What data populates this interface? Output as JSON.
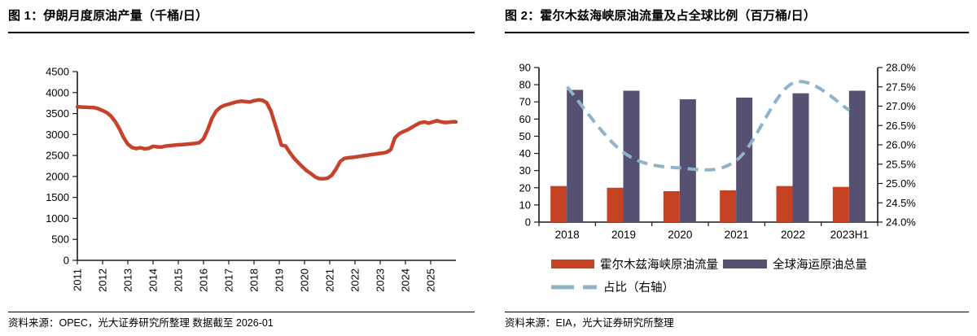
{
  "page": {
    "background": "#FFFFFF"
  },
  "figure1": {
    "title": "图 1：伊朗月度原油产量（千桶/日）",
    "source": "资料来源：OPEC，光大证券研究所整理  数据截至 2026-01"
  },
  "figure2": {
    "title": "图 2：霍尔木兹海峡原油流量及占全球比例（百万桶/日）",
    "source": "资料来源：EIA，光大证券研究所整理"
  },
  "chart_data": [
    {
      "type": "line",
      "title": "伊朗月度原油产量（千桶/日）",
      "xlabel": "",
      "ylabel": "",
      "ylim": [
        0,
        4500
      ],
      "y_ticks": [
        0,
        500,
        1000,
        1500,
        2000,
        2500,
        3000,
        3500,
        4000,
        4500
      ],
      "y_tick_labels": [
        "0",
        "500",
        "1000",
        "1500",
        "2000",
        "2500",
        "3000",
        "3500",
        "4000",
        "4500"
      ],
      "xlim": [
        2011,
        2026
      ],
      "x_ticks": [
        2011,
        2012,
        2013,
        2014,
        2015,
        2016,
        2017,
        2018,
        2019,
        2020,
        2021,
        2022,
        2023,
        2024,
        2025
      ],
      "x_tick_labels": [
        "2011",
        "2012",
        "2013",
        "2014",
        "2015",
        "2016",
        "2017",
        "2018",
        "2019",
        "2020",
        "2021",
        "2022",
        "2023",
        "2024",
        "2025"
      ],
      "grid": false,
      "legend": false,
      "series": [
        {
          "name": "伊朗月度原油产量",
          "color": "#C5432B",
          "points": [
            [
              2011.0,
              3660
            ],
            [
              2011.17,
              3655
            ],
            [
              2011.33,
              3650
            ],
            [
              2011.5,
              3645
            ],
            [
              2011.67,
              3640
            ],
            [
              2011.83,
              3615
            ],
            [
              2012.0,
              3570
            ],
            [
              2012.17,
              3520
            ],
            [
              2012.33,
              3440
            ],
            [
              2012.5,
              3310
            ],
            [
              2012.67,
              3130
            ],
            [
              2012.83,
              2930
            ],
            [
              2013.0,
              2770
            ],
            [
              2013.17,
              2690
            ],
            [
              2013.33,
              2665
            ],
            [
              2013.5,
              2685
            ],
            [
              2013.67,
              2660
            ],
            [
              2013.83,
              2670
            ],
            [
              2014.0,
              2720
            ],
            [
              2014.17,
              2705
            ],
            [
              2014.33,
              2700
            ],
            [
              2014.5,
              2725
            ],
            [
              2014.67,
              2735
            ],
            [
              2014.83,
              2745
            ],
            [
              2015.0,
              2755
            ],
            [
              2015.17,
              2760
            ],
            [
              2015.33,
              2770
            ],
            [
              2015.5,
              2780
            ],
            [
              2015.67,
              2790
            ],
            [
              2015.83,
              2805
            ],
            [
              2016.0,
              2900
            ],
            [
              2016.17,
              3120
            ],
            [
              2016.33,
              3380
            ],
            [
              2016.5,
              3560
            ],
            [
              2016.67,
              3650
            ],
            [
              2016.83,
              3695
            ],
            [
              2017.0,
              3725
            ],
            [
              2017.17,
              3755
            ],
            [
              2017.33,
              3780
            ],
            [
              2017.5,
              3795
            ],
            [
              2017.67,
              3785
            ],
            [
              2017.83,
              3775
            ],
            [
              2018.0,
              3805
            ],
            [
              2018.17,
              3825
            ],
            [
              2018.33,
              3815
            ],
            [
              2018.5,
              3760
            ],
            [
              2018.67,
              3560
            ],
            [
              2018.83,
              3250
            ],
            [
              2019.0,
              2920
            ],
            [
              2019.08,
              2750
            ],
            [
              2019.25,
              2725
            ],
            [
              2019.42,
              2570
            ],
            [
              2019.58,
              2440
            ],
            [
              2019.75,
              2330
            ],
            [
              2019.92,
              2230
            ],
            [
              2020.08,
              2140
            ],
            [
              2020.25,
              2070
            ],
            [
              2020.42,
              1990
            ],
            [
              2020.58,
              1950
            ],
            [
              2020.75,
              1945
            ],
            [
              2020.92,
              1960
            ],
            [
              2021.08,
              2030
            ],
            [
              2021.25,
              2180
            ],
            [
              2021.42,
              2360
            ],
            [
              2021.58,
              2430
            ],
            [
              2021.75,
              2445
            ],
            [
              2021.92,
              2455
            ],
            [
              2022.08,
              2470
            ],
            [
              2022.25,
              2485
            ],
            [
              2022.42,
              2500
            ],
            [
              2022.58,
              2515
            ],
            [
              2022.75,
              2530
            ],
            [
              2022.92,
              2545
            ],
            [
              2023.08,
              2555
            ],
            [
              2023.25,
              2575
            ],
            [
              2023.42,
              2640
            ],
            [
              2023.58,
              2920
            ],
            [
              2023.75,
              3020
            ],
            [
              2023.92,
              3070
            ],
            [
              2024.08,
              3110
            ],
            [
              2024.25,
              3170
            ],
            [
              2024.42,
              3230
            ],
            [
              2024.58,
              3280
            ],
            [
              2024.75,
              3300
            ],
            [
              2024.92,
              3270
            ],
            [
              2025.08,
              3300
            ],
            [
              2025.25,
              3330
            ],
            [
              2025.42,
              3300
            ],
            [
              2025.58,
              3285
            ],
            [
              2025.75,
              3295
            ],
            [
              2025.92,
              3305
            ],
            [
              2026.0,
              3300
            ]
          ]
        }
      ]
    },
    {
      "type": "bar",
      "title": "霍尔木兹海峡原油流量及占全球比例（百万桶/日）",
      "categories": [
        "2018",
        "2019",
        "2020",
        "2021",
        "2022",
        "2023H1"
      ],
      "left_ylim": [
        0,
        90
      ],
      "left_y_ticks": [
        0,
        10,
        20,
        30,
        40,
        50,
        60,
        70,
        80,
        90
      ],
      "left_y_tick_labels": [
        "0",
        "10",
        "20",
        "30",
        "40",
        "50",
        "60",
        "70",
        "80",
        "90"
      ],
      "right_ylim": [
        24,
        28
      ],
      "right_y_ticks": [
        24,
        24.5,
        25,
        25.5,
        26,
        26.5,
        27,
        27.5,
        28
      ],
      "right_y_tick_labels": [
        "24.0%",
        "24.5%",
        "25.0%",
        "25.5%",
        "26.0%",
        "26.5%",
        "27.0%",
        "27.5%",
        "28.0%"
      ],
      "grid": false,
      "legend_position": "bottom",
      "bar_series": [
        {
          "name": "霍尔木兹海峡原油流量",
          "color": "#C54222",
          "values": [
            21,
            20,
            18,
            18.5,
            21,
            20.5
          ]
        },
        {
          "name": "全球海运原油总量",
          "color": "#565071",
          "values": [
            77,
            76.5,
            71.5,
            72.5,
            75,
            76.5
          ]
        }
      ],
      "line_series": {
        "name": "占比（右轴）",
        "color": "#8FB4C9",
        "axis": "right",
        "style": "dashed",
        "values_pct": [
          27.5,
          25.8,
          25.4,
          25.6,
          27.6,
          26.9
        ]
      }
    }
  ]
}
